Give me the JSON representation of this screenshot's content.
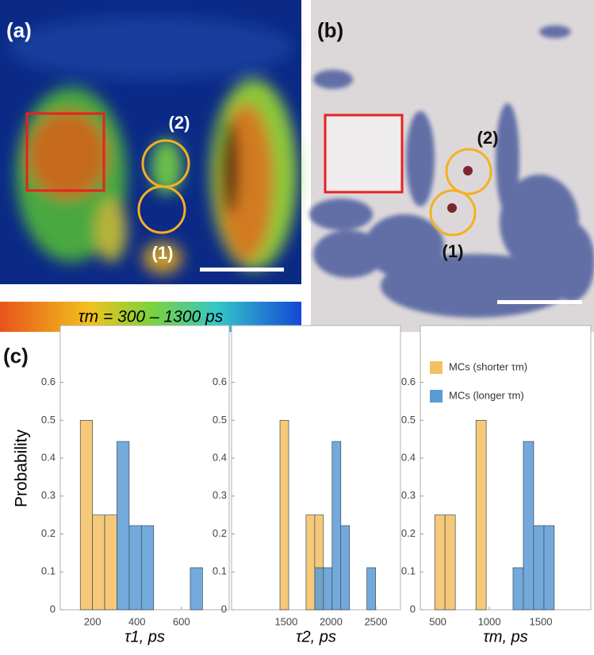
{
  "figure": {
    "panel_labels": [
      "(a)",
      "(b)",
      "(c)"
    ],
    "annotations_a": [
      "(2)",
      "(1)"
    ],
    "annotations_b": [
      "(2)",
      "(1)"
    ],
    "colorbar_label": "τm = 300 – 1300 ps"
  },
  "chart_data": [
    {
      "type": "histogram",
      "xlabel": "τ1, ps",
      "ylabel": "Probability",
      "xlim": [
        55,
        815
      ],
      "xticks": [
        200,
        400,
        600
      ],
      "ylim": [
        0,
        0.75
      ],
      "yticks": [
        0,
        0.1,
        0.2,
        0.3,
        0.4,
        0.5,
        0.6
      ],
      "series": [
        {
          "color": "#f5c062",
          "bins": [
            145,
            200,
            255,
            310
          ],
          "values": [
            0.5,
            0.25,
            0.25
          ]
        },
        {
          "color": "#5b9bd5",
          "bins": [
            310,
            365,
            420,
            475,
            530,
            585,
            640,
            695
          ],
          "values": [
            0.444,
            0.222,
            0.222,
            0,
            0,
            0,
            0.111
          ]
        }
      ]
    },
    {
      "type": "histogram",
      "xlabel": "τ2, ps",
      "xlim": [
        890,
        2775
      ],
      "xticks": [
        1500,
        2000,
        2500
      ],
      "ylim": [
        0,
        0.75
      ],
      "yticks": [
        0,
        0.1,
        0.2,
        0.3,
        0.4,
        0.5,
        0.6
      ],
      "series": [
        {
          "color": "#f5c062",
          "bins": [
            1430,
            1527,
            1624,
            1721,
            1818,
            1915
          ],
          "values": [
            0.5,
            0,
            0,
            0.25,
            0.25
          ]
        },
        {
          "color": "#5b9bd5",
          "bins": [
            1818,
            1915,
            2012,
            2109,
            2206,
            2303,
            2400,
            2497
          ],
          "values": [
            0.111,
            0.111,
            0.444,
            0.222,
            0,
            0,
            0.111
          ]
        }
      ]
    },
    {
      "type": "histogram",
      "xlabel": "τm, ps",
      "xlim": [
        330,
        1985
      ],
      "xticks": [
        500,
        1000,
        1500
      ],
      "ylim": [
        0,
        0.75
      ],
      "yticks": [
        0,
        0.1,
        0.2,
        0.3,
        0.4,
        0.5,
        0.6
      ],
      "legend": "upper left",
      "series": [
        {
          "name": "MCs (shorter τm)",
          "color": "#f5c062",
          "bins": [
            470,
            570,
            670,
            770,
            870,
            970
          ],
          "values": [
            0.25,
            0.25,
            0,
            0,
            0.5
          ]
        },
        {
          "name": "MCs (longer τm)",
          "color": "#5b9bd5",
          "bins": [
            1230,
            1330,
            1430,
            1530,
            1630
          ],
          "values": [
            0.111,
            0.444,
            0.222,
            0.222
          ]
        }
      ]
    }
  ]
}
